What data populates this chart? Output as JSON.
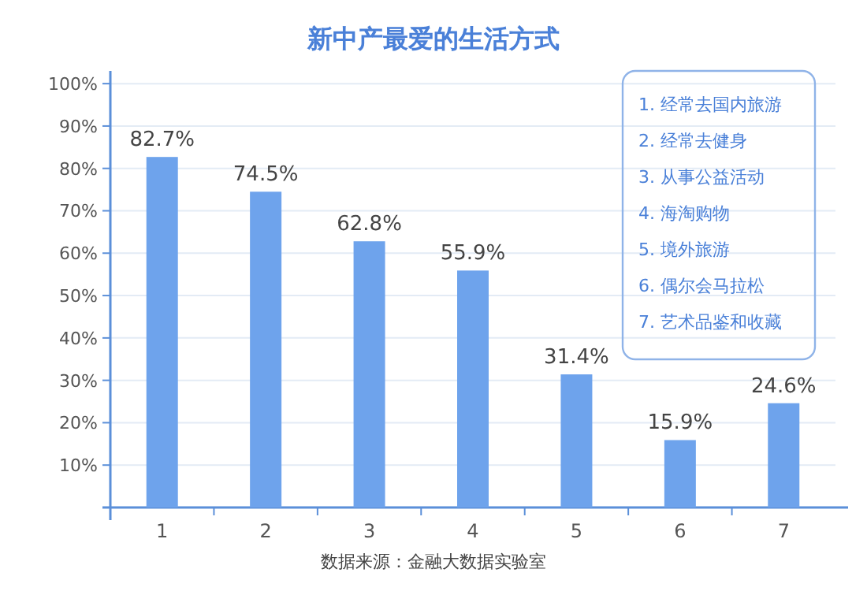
{
  "chart_data": {
    "type": "bar",
    "title": "新中产最爱的生活方式",
    "categories": [
      "1",
      "2",
      "3",
      "4",
      "5",
      "6",
      "7"
    ],
    "values": [
      82.7,
      74.5,
      62.8,
      55.9,
      31.4,
      15.9,
      24.6
    ],
    "value_labels": [
      "82.7%",
      "74.5%",
      "62.8%",
      "55.9%",
      "31.4%",
      "15.9%",
      "24.6%"
    ],
    "color": "#6ea3ec",
    "ylim": [
      0,
      103
    ],
    "yticks": [
      {
        "value": 10,
        "label": "10%"
      },
      {
        "value": 20,
        "label": "20%"
      },
      {
        "value": 30,
        "label": "30%"
      },
      {
        "value": 40,
        "label": "40%"
      },
      {
        "value": 50,
        "label": "50%"
      },
      {
        "value": 60,
        "label": "60%"
      },
      {
        "value": 70,
        "label": "70%"
      },
      {
        "value": 80,
        "label": "80%"
      },
      {
        "value": 90,
        "label": "90%"
      },
      {
        "value": 100,
        "label": "100%"
      }
    ],
    "grid": "y",
    "annotations": [
      "1. 经常去国内旅游",
      "2. 经常去健身",
      "3. 从事公益活动",
      "4. 海淘购物",
      "5. 境外旅游",
      "6. 偶尔会马拉松",
      "7. 艺术品鉴和收藏",
      "数据来源：金融大数据实验室"
    ]
  }
}
